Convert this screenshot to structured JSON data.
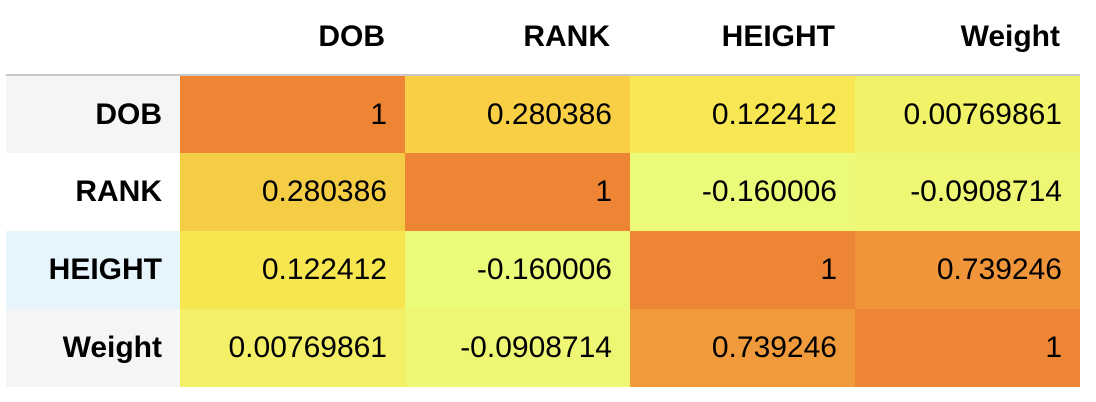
{
  "table": {
    "columns": [
      "DOB",
      "RANK",
      "HEIGHT",
      "Weight"
    ],
    "rows": [
      {
        "label": "DOB",
        "cells": [
          {
            "text": "1",
            "color": "#ee8534"
          },
          {
            "text": "0.280386",
            "color": "#f8cf45"
          },
          {
            "text": "0.122412",
            "color": "#f8e753"
          },
          {
            "text": "0.00769861",
            "color": "#f0f267"
          }
        ]
      },
      {
        "label": "RANK",
        "cells": [
          {
            "text": "0.280386",
            "color": "#f5cd44"
          },
          {
            "text": "1",
            "color": "#ee8534"
          },
          {
            "text": "-0.160006",
            "color": "#ecfa7a"
          },
          {
            "text": "-0.0908714",
            "color": "#eef674"
          }
        ]
      },
      {
        "label": "HEIGHT",
        "cells": [
          {
            "text": "0.122412",
            "color": "#f8e651"
          },
          {
            "text": "-0.160006",
            "color": "#ecfa7a"
          },
          {
            "text": "1",
            "color": "#ee8534"
          },
          {
            "text": "0.739246",
            "color": "#f0953a"
          }
        ]
      },
      {
        "label": "Weight",
        "cells": [
          {
            "text": "0.00769861",
            "color": "#f3f068"
          },
          {
            "text": "-0.0908714",
            "color": "#eef674"
          },
          {
            "text": "0.739246",
            "color": "#f09a3b"
          },
          {
            "text": "1",
            "color": "#ee8534"
          }
        ]
      }
    ]
  }
}
